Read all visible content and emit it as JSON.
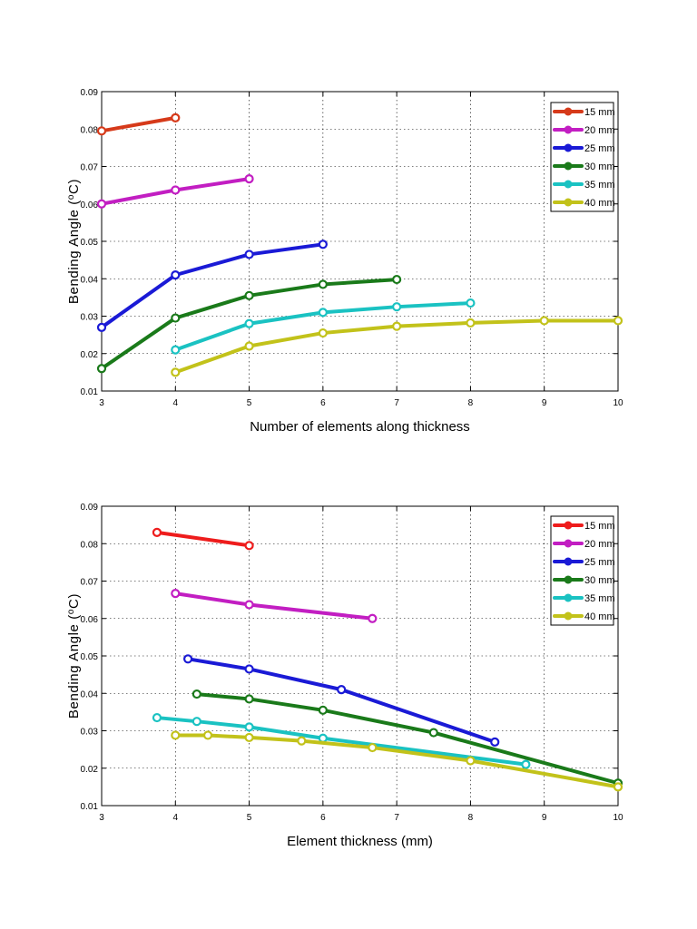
{
  "chart_data": [
    {
      "type": "line",
      "xlabel": "Number of elements along thickness",
      "ylabel": "Bending Angle (°C)",
      "ylabel_main": "Bending Angle (",
      "ylabel_sup": "o",
      "ylabel_tail": "C)",
      "xlim": [
        3,
        10
      ],
      "ylim": [
        0.01,
        0.09
      ],
      "xticks": [
        "3",
        "4",
        "5",
        "6",
        "7",
        "8",
        "9",
        "10"
      ],
      "yticks": [
        "0.01",
        "0.02",
        "0.03",
        "0.04",
        "0.05",
        "0.06",
        "0.07",
        "0.08",
        "0.09"
      ],
      "grid": true,
      "legend_position": "top-right",
      "series": [
        {
          "name": "15 mm",
          "color": "#d63a1a",
          "x": [
            3,
            4
          ],
          "y": [
            0.0795,
            0.083
          ]
        },
        {
          "name": "20 mm",
          "color": "#c21ec2",
          "x": [
            3,
            4,
            5
          ],
          "y": [
            0.06,
            0.0637,
            0.0667
          ]
        },
        {
          "name": "25 mm",
          "color": "#1a1ad6",
          "x": [
            3,
            4,
            5,
            6
          ],
          "y": [
            0.027,
            0.041,
            0.0465,
            0.0492
          ]
        },
        {
          "name": "30 mm",
          "color": "#1a7a1a",
          "x": [
            3,
            4,
            5,
            6,
            7
          ],
          "y": [
            0.016,
            0.0295,
            0.0355,
            0.0385,
            0.0398
          ]
        },
        {
          "name": "35 mm",
          "color": "#1ac2c2",
          "x": [
            4,
            5,
            6,
            7,
            8
          ],
          "y": [
            0.021,
            0.028,
            0.031,
            0.0325,
            0.0335
          ]
        },
        {
          "name": "40 mm",
          "color": "#c2c21a",
          "x": [
            4,
            5,
            6,
            7,
            8,
            9,
            10
          ],
          "y": [
            0.015,
            0.022,
            0.0255,
            0.0273,
            0.0282,
            0.0288,
            0.0288
          ]
        }
      ]
    },
    {
      "type": "line",
      "xlabel": "Element thickness (mm)",
      "ylabel": "Bending Angle (°C)",
      "ylabel_main": "Bending Angle (",
      "ylabel_sup": "o",
      "ylabel_tail": "C)",
      "xlim": [
        3,
        10
      ],
      "ylim": [
        0.01,
        0.09
      ],
      "xticks": [
        "3",
        "4",
        "5",
        "6",
        "7",
        "8",
        "9",
        "10"
      ],
      "yticks": [
        "0.01",
        "0.02",
        "0.03",
        "0.04",
        "0.05",
        "0.06",
        "0.07",
        "0.08",
        "0.09"
      ],
      "grid": true,
      "legend_position": "top-right",
      "series": [
        {
          "name": "15 mm",
          "color": "#ee1c1c",
          "x": [
            3.75,
            5
          ],
          "y": [
            0.083,
            0.0795
          ]
        },
        {
          "name": "20 mm",
          "color": "#c21ec2",
          "x": [
            4,
            5,
            6.67
          ],
          "y": [
            0.0667,
            0.0637,
            0.06
          ]
        },
        {
          "name": "25 mm",
          "color": "#1a1ad6",
          "x": [
            4.17,
            5,
            6.25,
            8.33
          ],
          "y": [
            0.0492,
            0.0465,
            0.041,
            0.027
          ]
        },
        {
          "name": "30 mm",
          "color": "#1a7a1a",
          "x": [
            4.29,
            5,
            6,
            7.5,
            10
          ],
          "y": [
            0.0398,
            0.0385,
            0.0355,
            0.0295,
            0.016
          ]
        },
        {
          "name": "35 mm",
          "color": "#1ac2c2",
          "x": [
            3.75,
            4.29,
            5,
            6,
            8.75
          ],
          "y": [
            0.0335,
            0.0325,
            0.031,
            0.028,
            0.021
          ]
        },
        {
          "name": "40 mm",
          "color": "#c2c21a",
          "x": [
            4,
            4.44,
            5,
            5.71,
            6.67,
            8,
            10
          ],
          "y": [
            0.0288,
            0.0288,
            0.0282,
            0.0273,
            0.0255,
            0.022,
            0.015
          ]
        }
      ]
    }
  ]
}
